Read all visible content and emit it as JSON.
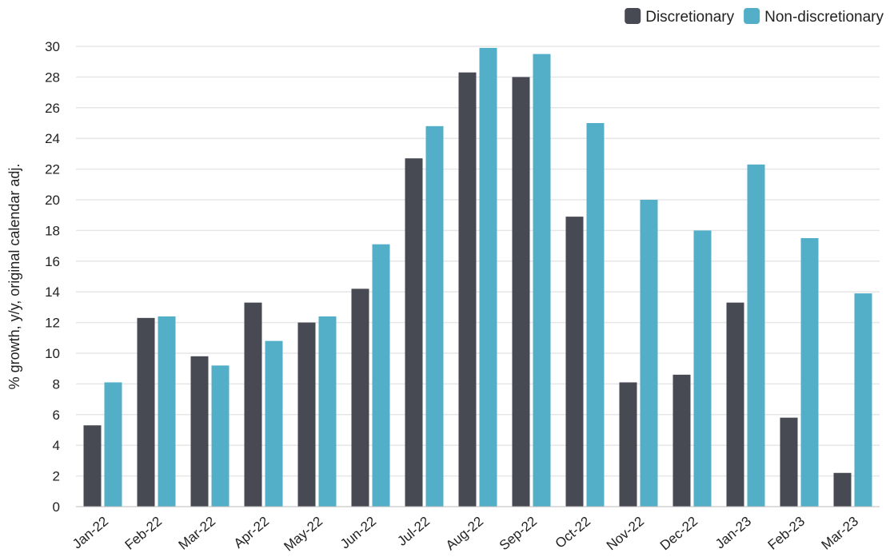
{
  "chart_data": {
    "type": "bar",
    "title": "",
    "xlabel": "",
    "ylabel": "% growth, y/y, original calendar adj.",
    "ylim": [
      0,
      30
    ],
    "yticks": [
      0,
      2,
      4,
      6,
      8,
      10,
      12,
      14,
      16,
      18,
      20,
      22,
      24,
      26,
      28,
      30
    ],
    "grid": "horizontal",
    "legend_position": "top-right",
    "categories": [
      "Jan-22",
      "Feb-22",
      "Mar-22",
      "Apr-22",
      "May-22",
      "Jun-22",
      "Jul-22",
      "Aug-22",
      "Sep-22",
      "Oct-22",
      "Nov-22",
      "Dec-22",
      "Jan-23",
      "Feb-23",
      "Mar-23"
    ],
    "series": [
      {
        "name": "Discretionary",
        "color": "#474a53",
        "values": [
          5.3,
          12.3,
          9.8,
          13.3,
          12.0,
          14.2,
          22.7,
          28.3,
          28.0,
          18.9,
          8.1,
          8.6,
          13.3,
          5.8,
          2.2
        ]
      },
      {
        "name": "Non-discretionary",
        "color": "#53afc8",
        "values": [
          8.1,
          12.4,
          9.2,
          10.8,
          12.4,
          17.1,
          24.8,
          29.9,
          29.5,
          25.0,
          20.0,
          18.0,
          22.3,
          17.5,
          13.9
        ]
      }
    ]
  }
}
